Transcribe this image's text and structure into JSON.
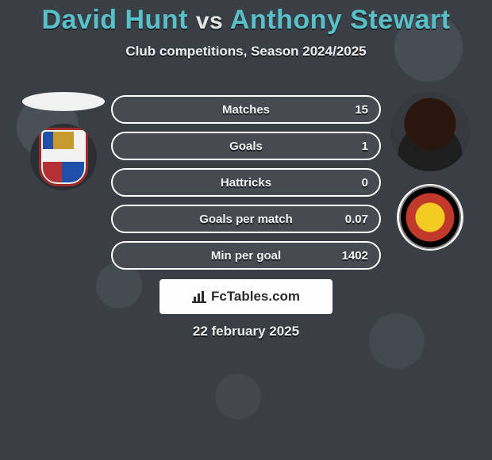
{
  "title": {
    "player1": "David Hunt",
    "vs": "vs",
    "player2": "Anthony Stewart"
  },
  "subtitle": "Club competitions, Season 2024/2025",
  "date": "22 february 2025",
  "brand": {
    "label": "FcTables.com"
  },
  "colors": {
    "accent_teal": "#59c0c9",
    "bar_border": "#ffffff",
    "bar_bg": "#464b51",
    "page_bg": "#3a3f45",
    "text": "#ededed"
  },
  "stats": {
    "label_fontsize": 15,
    "rows": [
      {
        "label": "Matches",
        "left": "",
        "right": "15",
        "fill_pct": 0,
        "fill_color": "#59c0c9"
      },
      {
        "label": "Goals",
        "left": "",
        "right": "1",
        "fill_pct": 0,
        "fill_color": "#59c0c9"
      },
      {
        "label": "Hattricks",
        "left": "",
        "right": "0",
        "fill_pct": 0,
        "fill_color": "#59c0c9"
      },
      {
        "label": "Goals per match",
        "left": "",
        "right": "0.07",
        "fill_pct": 0,
        "fill_color": "#59c0c9"
      },
      {
        "label": "Min per goal",
        "left": "",
        "right": "1402",
        "fill_pct": 0,
        "fill_color": "#59c0c9"
      }
    ]
  },
  "players": {
    "left": {
      "name": "David Hunt",
      "club": "Wealdstone"
    },
    "right": {
      "name": "Anthony Stewart",
      "club": "Ebbsfleet United"
    }
  }
}
